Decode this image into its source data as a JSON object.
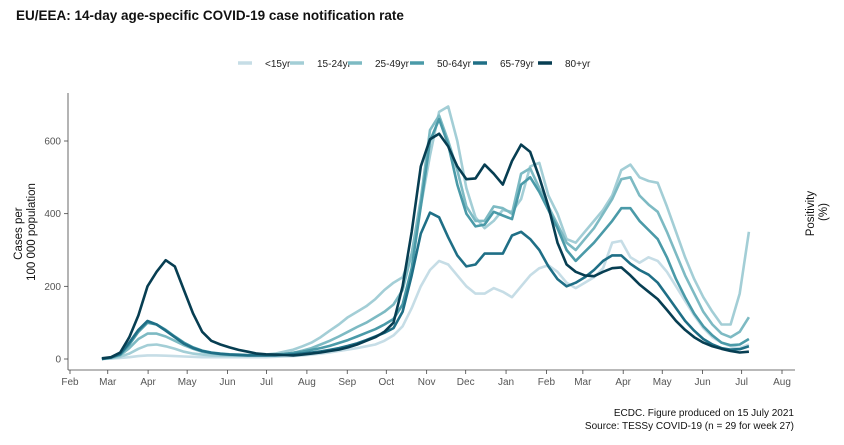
{
  "chart_data": {
    "type": "line",
    "title": "EU/EEA: 14-day age-specific COVID-19 case notification rate",
    "ylabel": "Cases per\n100 000 population",
    "ylabel_right": "Positivity\n(%)",
    "xlabel": "",
    "ylim": [
      0,
      730
    ],
    "xlim": [
      "2020-02-01",
      "2021-08-15"
    ],
    "yticks": [
      0,
      200,
      400,
      600
    ],
    "xticks": [
      {
        "date": "2020-02-01",
        "label": "Feb"
      },
      {
        "date": "2020-03-01",
        "label": "Mar"
      },
      {
        "date": "2020-04-01",
        "label": "Apr"
      },
      {
        "date": "2020-05-01",
        "label": "May"
      },
      {
        "date": "2020-06-01",
        "label": "Jun"
      },
      {
        "date": "2020-07-01",
        "label": "Jul"
      },
      {
        "date": "2020-08-01",
        "label": "Aug"
      },
      {
        "date": "2020-09-01",
        "label": "Sep"
      },
      {
        "date": "2020-10-01",
        "label": "Oct"
      },
      {
        "date": "2020-11-01",
        "label": "Nov"
      },
      {
        "date": "2020-12-01",
        "label": "Dec"
      },
      {
        "date": "2021-01-01",
        "label": "Jan"
      },
      {
        "date": "2021-02-01",
        "label": "Feb"
      },
      {
        "date": "2021-03-01",
        "label": "Mar"
      },
      {
        "date": "2021-04-01",
        "label": "Apr"
      },
      {
        "date": "2021-05-01",
        "label": "May"
      },
      {
        "date": "2021-06-01",
        "label": "Jun"
      },
      {
        "date": "2021-07-01",
        "label": "Jul"
      },
      {
        "date": "2021-08-01",
        "label": "Aug"
      }
    ],
    "x_start": "2020-02-24",
    "x_step_days": 7,
    "legend_position": "top",
    "grid": false,
    "series": [
      {
        "name": "<15yr",
        "color": "#c6dde6",
        "values": [
          0,
          1,
          3,
          5,
          8,
          10,
          10,
          9,
          8,
          7,
          6,
          5,
          5,
          5,
          5,
          5,
          5,
          5,
          5,
          6,
          7,
          8,
          10,
          12,
          15,
          18,
          22,
          26,
          30,
          35,
          40,
          50,
          65,
          90,
          140,
          200,
          245,
          270,
          260,
          230,
          200,
          180,
          180,
          195,
          185,
          170,
          200,
          230,
          250,
          258,
          240,
          210,
          195,
          210,
          225,
          250,
          320,
          325,
          280,
          265,
          280,
          270,
          240,
          200,
          160,
          120,
          85,
          60,
          45,
          35,
          30,
          40
        ]
      },
      {
        "name": "15-24yr",
        "color": "#a3ced6",
        "values": [
          0,
          2,
          6,
          15,
          28,
          38,
          40,
          35,
          28,
          20,
          15,
          12,
          10,
          9,
          9,
          9,
          10,
          11,
          12,
          15,
          20,
          26,
          35,
          45,
          60,
          78,
          95,
          115,
          130,
          145,
          165,
          190,
          210,
          225,
          290,
          420,
          560,
          680,
          695,
          600,
          470,
          390,
          360,
          380,
          410,
          405,
          440,
          530,
          540,
          450,
          400,
          330,
          320,
          350,
          380,
          410,
          450,
          520,
          535,
          500,
          490,
          485,
          420,
          350,
          280,
          220,
          170,
          130,
          95,
          95,
          180,
          350
        ]
      },
      {
        "name": "25-49yr",
        "color": "#7dbac3",
        "values": [
          0,
          3,
          10,
          30,
          55,
          70,
          70,
          62,
          50,
          38,
          28,
          20,
          16,
          13,
          11,
          10,
          10,
          10,
          10,
          11,
          13,
          17,
          23,
          30,
          40,
          50,
          62,
          75,
          88,
          100,
          115,
          130,
          150,
          190,
          290,
          440,
          630,
          670,
          600,
          520,
          420,
          380,
          380,
          420,
          415,
          400,
          510,
          525,
          470,
          420,
          370,
          320,
          300,
          330,
          360,
          400,
          440,
          495,
          500,
          450,
          425,
          405,
          350,
          290,
          230,
          180,
          130,
          95,
          70,
          60,
          75,
          115
        ]
      },
      {
        "name": "50-64yr",
        "color": "#4a9aa8",
        "values": [
          0,
          4,
          12,
          40,
          75,
          100,
          95,
          80,
          62,
          45,
          32,
          23,
          18,
          15,
          13,
          12,
          11,
          11,
          11,
          12,
          14,
          17,
          20,
          25,
          30,
          36,
          44,
          52,
          62,
          72,
          82,
          95,
          110,
          150,
          250,
          420,
          600,
          660,
          590,
          480,
          400,
          365,
          370,
          405,
          395,
          385,
          480,
          500,
          460,
          410,
          360,
          300,
          270,
          295,
          320,
          350,
          380,
          415,
          415,
          380,
          355,
          330,
          280,
          220,
          170,
          125,
          90,
          65,
          45,
          38,
          40,
          55
        ]
      },
      {
        "name": "65-79yr",
        "color": "#1f6f86",
        "values": [
          0,
          4,
          14,
          45,
          80,
          105,
          95,
          78,
          60,
          42,
          30,
          22,
          17,
          14,
          12,
          11,
          10,
          10,
          10,
          10,
          11,
          13,
          15,
          18,
          21,
          25,
          30,
          36,
          43,
          52,
          62,
          72,
          85,
          130,
          230,
          345,
          403,
          390,
          335,
          285,
          255,
          260,
          290,
          290,
          290,
          340,
          350,
          330,
          300,
          255,
          220,
          200,
          210,
          225,
          245,
          270,
          285,
          285,
          262,
          245,
          232,
          210,
          175,
          140,
          105,
          78,
          55,
          40,
          30,
          26,
          27,
          35
        ]
      },
      {
        "name": "80+yr",
        "color": "#073e52",
        "values": [
          2,
          5,
          18,
          60,
          120,
          200,
          240,
          272,
          255,
          190,
          125,
          75,
          50,
          40,
          32,
          25,
          20,
          15,
          13,
          12,
          11,
          10,
          12,
          15,
          18,
          22,
          26,
          32,
          40,
          50,
          60,
          75,
          100,
          200,
          350,
          530,
          605,
          620,
          585,
          530,
          495,
          497,
          535,
          510,
          480,
          545,
          590,
          570,
          500,
          420,
          320,
          260,
          240,
          230,
          228,
          240,
          250,
          252,
          230,
          205,
          185,
          165,
          135,
          105,
          80,
          60,
          45,
          35,
          28,
          22,
          18,
          20
        ]
      }
    ]
  },
  "footer": {
    "line1": "ECDC. Figure produced on 15 July 2021",
    "line2": "Source: TESSy COVID-19 (n = 29 for week 27)"
  }
}
